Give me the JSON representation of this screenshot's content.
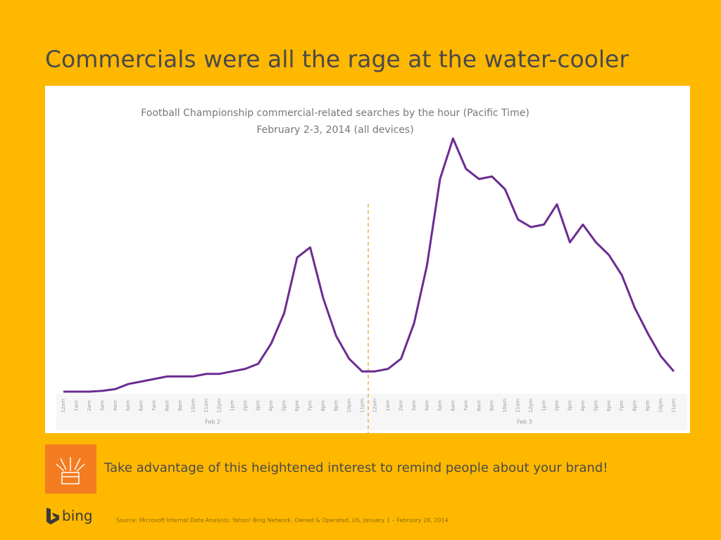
{
  "title": "Commercials were all the rage at the water-cooler",
  "chart_data": {
    "type": "line",
    "title": "Football Championship commercial-related searches by the hour (Pacific Time)",
    "subtitle": "February 2-3, 2014  (all devices)",
    "categories": [
      "12am",
      "1am",
      "2am",
      "3am",
      "4am",
      "5am",
      "6am",
      "7am",
      "8am",
      "9am",
      "10am",
      "11am",
      "12pm",
      "1pm",
      "2pm",
      "3pm",
      "4pm",
      "5pm",
      "6pm",
      "7pm",
      "8pm",
      "9pm",
      "10pm",
      "11pm",
      "12am",
      "1am",
      "2am",
      "3am",
      "4am",
      "5am",
      "6am",
      "7am",
      "8am",
      "9am",
      "10am",
      "11am",
      "12pm",
      "1pm",
      "2pm",
      "3pm",
      "4pm",
      "5pm",
      "6pm",
      "7pm",
      "8pm",
      "9pm",
      "10pm",
      "11pm"
    ],
    "groups": [
      "Feb 2",
      "Feb 3"
    ],
    "values": [
      0,
      0,
      0,
      0.3,
      1,
      3,
      4,
      5,
      6,
      6,
      6,
      7,
      7,
      8,
      9,
      11,
      19,
      31,
      53,
      57,
      37,
      22,
      13,
      8,
      8,
      9,
      13,
      27,
      50,
      84,
      100,
      88,
      84,
      85,
      80,
      68,
      65,
      66,
      74,
      59,
      66,
      59,
      54,
      46,
      33,
      23,
      14,
      8
    ],
    "color": "#6b2c91",
    "ylim": [
      0,
      100
    ]
  },
  "callout": "Take advantage of this heightened interest to remind people about your brand!",
  "brand": "bing",
  "source": "Source: Microsoft Internal Data Analysis: Yahoo! Bing Network, Owned & Operated, US, January 1 – February 28, 2014"
}
